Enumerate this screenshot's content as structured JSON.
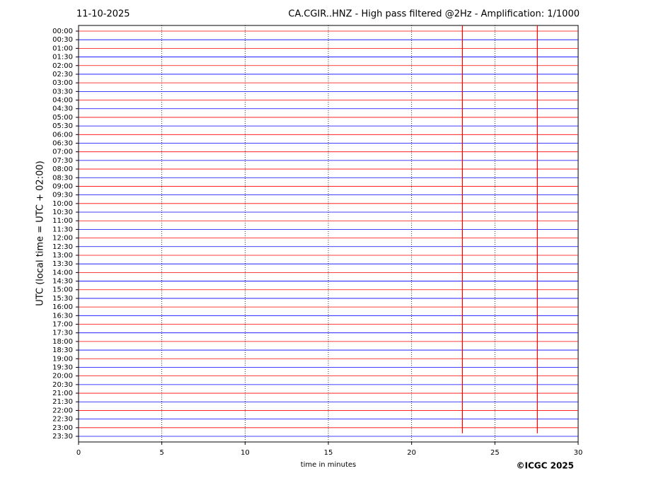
{
  "chart_data": {
    "type": "helicorder",
    "title": "11-10-2025",
    "subtitle": "CA.CGIR..HNZ - High pass filtered @2Hz - Amplification: 1/1000",
    "ylabel": "UTC (local time = UTC + 02:00)",
    "xlabel": "time in minutes",
    "credit": "©ICGC 2025",
    "categories": [
      "00:00",
      "00:30",
      "01:00",
      "01:30",
      "02:00",
      "02:30",
      "03:00",
      "03:30",
      "04:00",
      "04:30",
      "05:00",
      "05:30",
      "06:00",
      "06:30",
      "07:00",
      "07:30",
      "08:00",
      "08:30",
      "09:00",
      "09:30",
      "10:00",
      "10:30",
      "11:00",
      "11:30",
      "12:00",
      "12:30",
      "13:00",
      "13:30",
      "14:00",
      "14:30",
      "15:00",
      "15:30",
      "16:00",
      "16:30",
      "17:00",
      "17:30",
      "18:00",
      "18:30",
      "19:00",
      "19:30",
      "20:00",
      "20:30",
      "21:00",
      "21:30",
      "22:00",
      "22:30",
      "23:00",
      "23:30"
    ],
    "trace_colors": [
      "#ff0000",
      "#0000ff"
    ],
    "xlim": [
      0,
      30
    ],
    "xticks": [
      0,
      5,
      10,
      15,
      20,
      25,
      30
    ],
    "grid": true,
    "events": [
      {
        "x": 23.05,
        "color": "#ff0000"
      },
      {
        "x": 27.55,
        "color": "#ff0000"
      }
    ]
  }
}
